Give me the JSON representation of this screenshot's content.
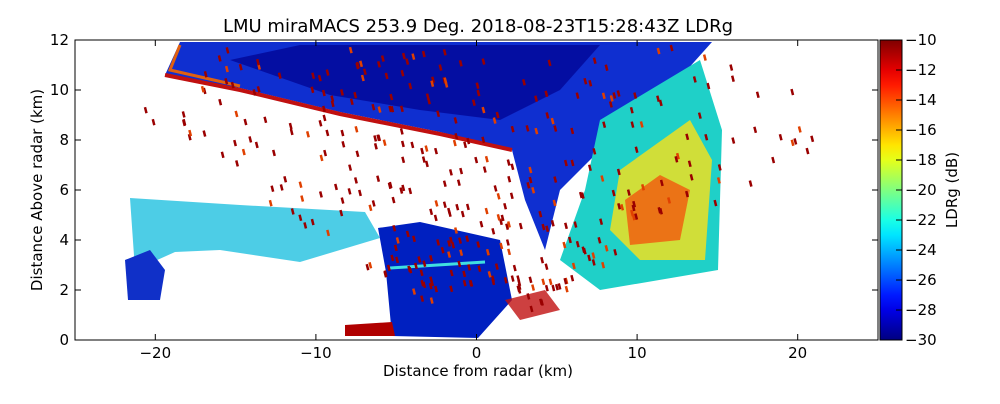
{
  "chart_data": {
    "type": "rhi",
    "title": "LMU miraMACS 253.9 Deg. 2018-08-23T15:28:43Z  LDRg",
    "x_label": "Distance from radar (km)",
    "y_label": "Distance Above radar  (km)",
    "xlim": [
      -25,
      25
    ],
    "xticks": [
      {
        "value": -20,
        "label": "−20"
      },
      {
        "value": -10,
        "label": "−10"
      },
      0,
      10,
      20
    ],
    "ylim": [
      0,
      12
    ],
    "yticks": [
      0,
      2,
      4,
      6,
      8,
      10,
      12
    ],
    "colorbar": {
      "label": "LDRg (dB)",
      "colormap": "jet",
      "lim": [
        -30,
        -10
      ],
      "ticks": [
        {
          "value": -30,
          "label": "−30"
        },
        {
          "value": -28,
          "label": "−28"
        },
        {
          "value": -26,
          "label": "−26"
        },
        {
          "value": -24,
          "label": "−24"
        },
        {
          "value": -22,
          "label": "−22"
        },
        {
          "value": -20,
          "label": "−20"
        },
        {
          "value": -18,
          "label": "−18"
        },
        {
          "value": -16,
          "label": "−16"
        },
        {
          "value": -14,
          "label": "−14"
        },
        {
          "value": -12,
          "label": "−12"
        },
        {
          "value": -10,
          "label": "−10"
        }
      ]
    }
  }
}
